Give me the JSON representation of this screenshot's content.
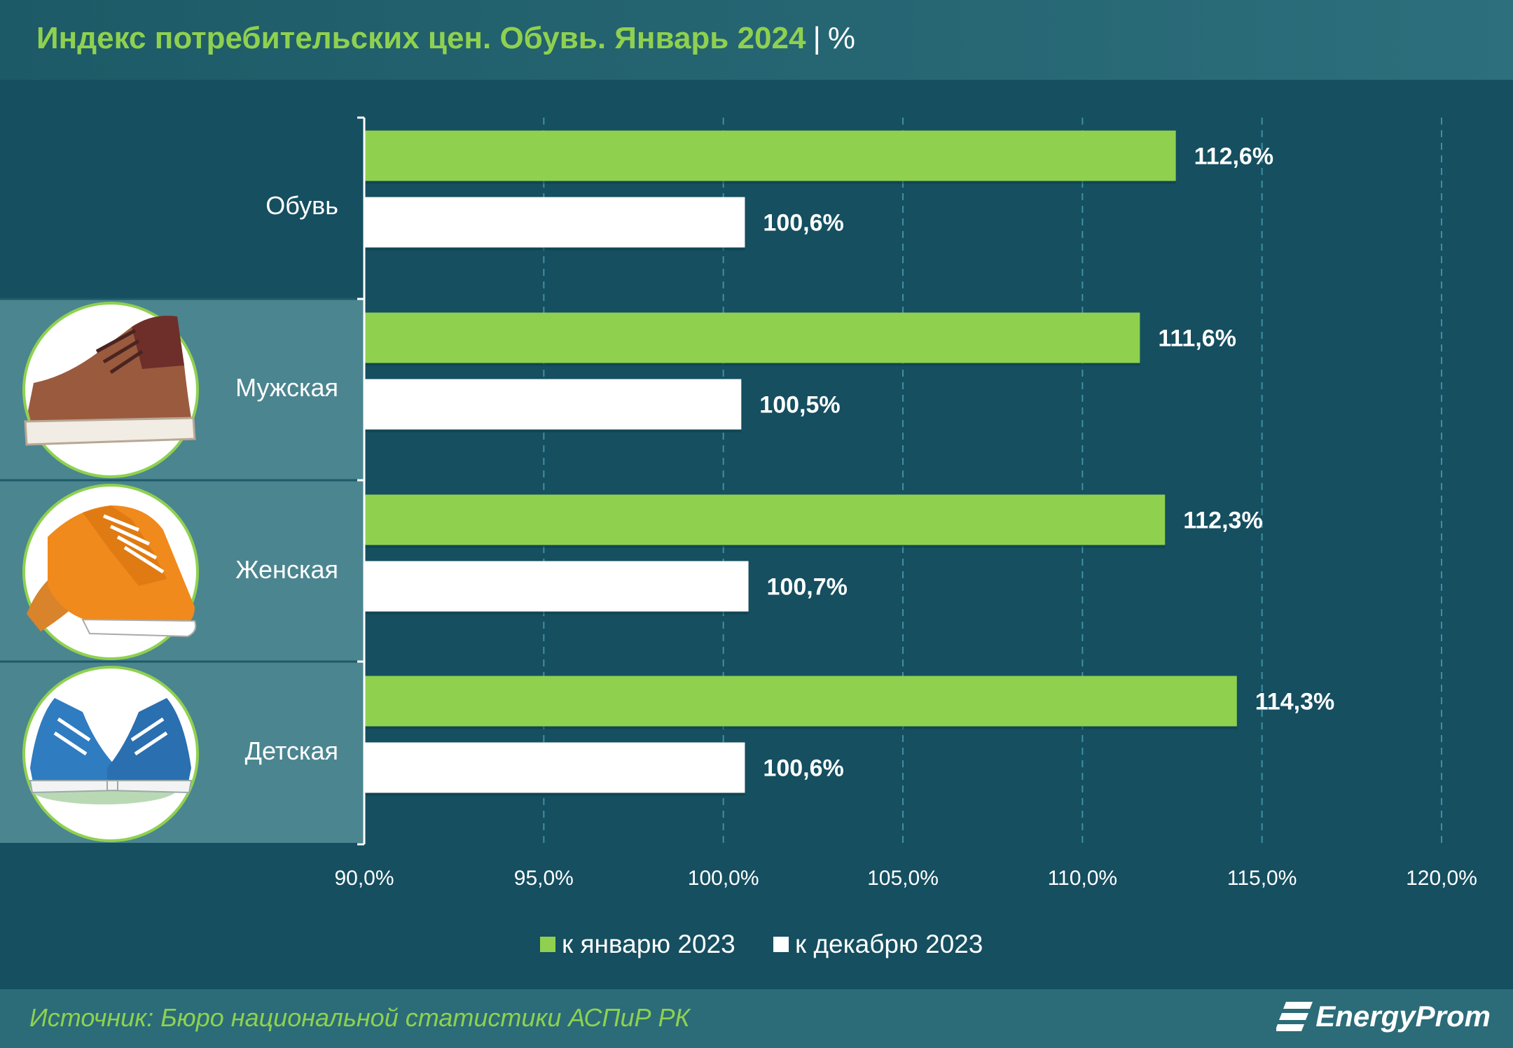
{
  "header": {
    "separator": "|"
  },
  "footer": {
    "source": "Источник: Бюро национальной статистики АСПиР РК",
    "logo": "EnergyProm"
  },
  "chart_data": {
    "type": "bar",
    "orientation": "horizontal",
    "title": "Индекс потребительских цен. Обувь. Январь 2024",
    "unit": "%",
    "categories": [
      "Обувь",
      "Мужская",
      "Женская",
      "Детская"
    ],
    "series": [
      {
        "name": "к январю 2023",
        "color": "#8fd14f",
        "values": [
          112.6,
          111.6,
          112.3,
          114.3
        ]
      },
      {
        "name": "к декабрю 2023",
        "color": "#ffffff",
        "values": [
          100.6,
          100.5,
          100.7,
          100.6
        ]
      }
    ],
    "data_labels": [
      [
        "112,6%",
        "111,6%",
        "112,3%",
        "114,3%"
      ],
      [
        "100,6%",
        "100,5%",
        "100,7%",
        "100,6%"
      ]
    ],
    "xlim": [
      90,
      120
    ],
    "xticks": [
      90,
      95,
      100,
      105,
      110,
      115,
      120
    ],
    "xtick_labels": [
      "90,0%",
      "95,0%",
      "100,0%",
      "105,0%",
      "110,0%",
      "115,0%",
      "120,0%"
    ],
    "grid": true,
    "legend_position": "bottom"
  }
}
